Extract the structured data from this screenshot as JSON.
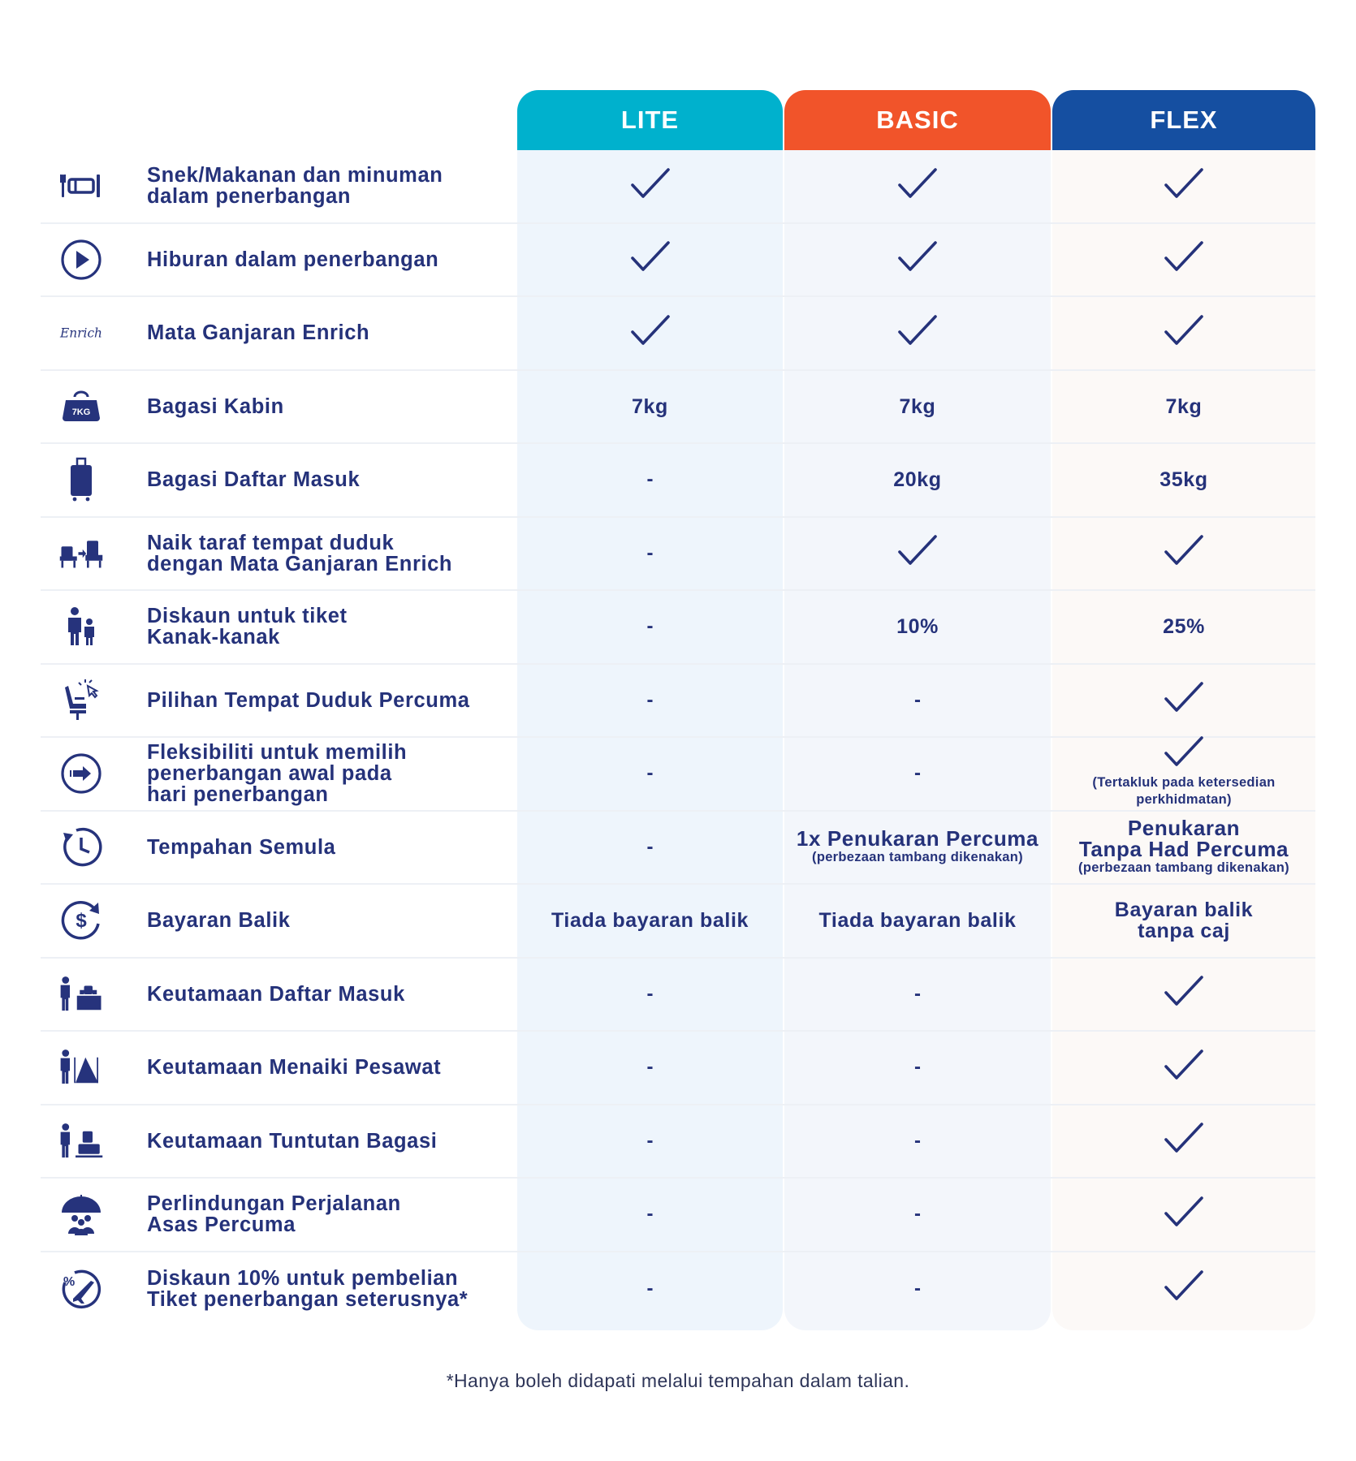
{
  "tiers": [
    {
      "name": "LITE",
      "color": "#00b1cd"
    },
    {
      "name": "BASIC",
      "color": "#f1542a"
    },
    {
      "name": "FLEX",
      "color": "#154fa1"
    }
  ],
  "check_symbol_name": "check-icon",
  "rows": [
    {
      "icon": "meal-icon",
      "label": "Snek/Makanan dan minuman\ndalam penerbangan",
      "cells": [
        {
          "type": "check"
        },
        {
          "type": "check"
        },
        {
          "type": "check"
        }
      ]
    },
    {
      "icon": "play-icon",
      "label": "Hiburan dalam penerbangan",
      "cells": [
        {
          "type": "check"
        },
        {
          "type": "check"
        },
        {
          "type": "check"
        }
      ]
    },
    {
      "icon": "enrich-logo",
      "icon_text": "Enrich",
      "label": "Mata Ganjaran Enrich",
      "cells": [
        {
          "type": "check"
        },
        {
          "type": "check"
        },
        {
          "type": "check"
        }
      ]
    },
    {
      "icon": "cabin-bag-icon",
      "icon_text": "7KG",
      "label": "Bagasi Kabin",
      "cells": [
        {
          "type": "text",
          "text": "7kg"
        },
        {
          "type": "text",
          "text": "7kg"
        },
        {
          "type": "text",
          "text": "7kg"
        }
      ]
    },
    {
      "icon": "luggage-icon",
      "label": "Bagasi Daftar Masuk",
      "cells": [
        {
          "type": "dash",
          "text": "-"
        },
        {
          "type": "text",
          "text": "20kg"
        },
        {
          "type": "text",
          "text": "35kg"
        }
      ]
    },
    {
      "icon": "seat-upgrade-icon",
      "label": "Naik taraf tempat duduk\ndengan Mata Ganjaran Enrich",
      "cells": [
        {
          "type": "dash",
          "text": "-"
        },
        {
          "type": "check"
        },
        {
          "type": "check"
        }
      ]
    },
    {
      "icon": "family-icon",
      "label": "Diskaun untuk tiket\nKanak-kanak",
      "cells": [
        {
          "type": "dash",
          "text": "-"
        },
        {
          "type": "text",
          "text": "10%"
        },
        {
          "type": "text",
          "text": "25%"
        }
      ]
    },
    {
      "icon": "seat-select-icon",
      "label": "Pilihan Tempat Duduk Percuma",
      "cells": [
        {
          "type": "dash",
          "text": "-"
        },
        {
          "type": "dash",
          "text": "-"
        },
        {
          "type": "check"
        }
      ]
    },
    {
      "icon": "early-flight-icon",
      "label": "Fleksibiliti untuk memilih\npenerbangan awal pada\nhari penerbangan",
      "cells": [
        {
          "type": "dash",
          "text": "-"
        },
        {
          "type": "dash",
          "text": "-"
        },
        {
          "type": "check-note",
          "note": "(Tertakluk pada ketersedian\nperkhidmatan)"
        }
      ]
    },
    {
      "icon": "rebook-clock-icon",
      "label": "Tempahan Semula",
      "cells": [
        {
          "type": "dash",
          "text": "-"
        },
        {
          "type": "text-note",
          "text": "1x Penukaran Percuma",
          "note": "(perbezaan tambang dikenakan)"
        },
        {
          "type": "text-note",
          "text": "Penukaran\nTanpa Had Percuma",
          "note": "(perbezaan tambang dikenakan)"
        }
      ]
    },
    {
      "icon": "refund-icon",
      "label": "Bayaran Balik",
      "cells": [
        {
          "type": "text",
          "text": "Tiada bayaran balik"
        },
        {
          "type": "text",
          "text": "Tiada bayaran balik"
        },
        {
          "type": "text",
          "text": "Bayaran balik\ntanpa caj"
        }
      ]
    },
    {
      "icon": "priority-checkin-icon",
      "label": "Keutamaan Daftar Masuk",
      "cells": [
        {
          "type": "dash",
          "text": "-"
        },
        {
          "type": "dash",
          "text": "-"
        },
        {
          "type": "check"
        }
      ]
    },
    {
      "icon": "priority-boarding-icon",
      "label": "Keutamaan Menaiki Pesawat",
      "cells": [
        {
          "type": "dash",
          "text": "-"
        },
        {
          "type": "dash",
          "text": "-"
        },
        {
          "type": "check"
        }
      ]
    },
    {
      "icon": "priority-baggage-icon",
      "label": "Keutamaan Tuntutan Bagasi",
      "cells": [
        {
          "type": "dash",
          "text": "-"
        },
        {
          "type": "dash",
          "text": "-"
        },
        {
          "type": "check"
        }
      ]
    },
    {
      "icon": "travel-protection-icon",
      "label": "Perlindungan Perjalanan\nAsas Percuma",
      "cells": [
        {
          "type": "dash",
          "text": "-"
        },
        {
          "type": "dash",
          "text": "-"
        },
        {
          "type": "check"
        }
      ]
    },
    {
      "icon": "discount-flight-icon",
      "icon_text": "%",
      "label": "Diskaun 10% untuk pembelian\nTiket penerbangan seterusnya*",
      "cells": [
        {
          "type": "dash",
          "text": "-"
        },
        {
          "type": "dash",
          "text": "-"
        },
        {
          "type": "check"
        }
      ]
    }
  ],
  "footnote": "*Hanya boleh didapati melalui tempahan dalam talian.",
  "colors": {
    "text": "#25327a",
    "lite_bg": "#eef5fc",
    "basic_bg": "#f3f6fb",
    "flex_bg": "#fcf9f7"
  }
}
